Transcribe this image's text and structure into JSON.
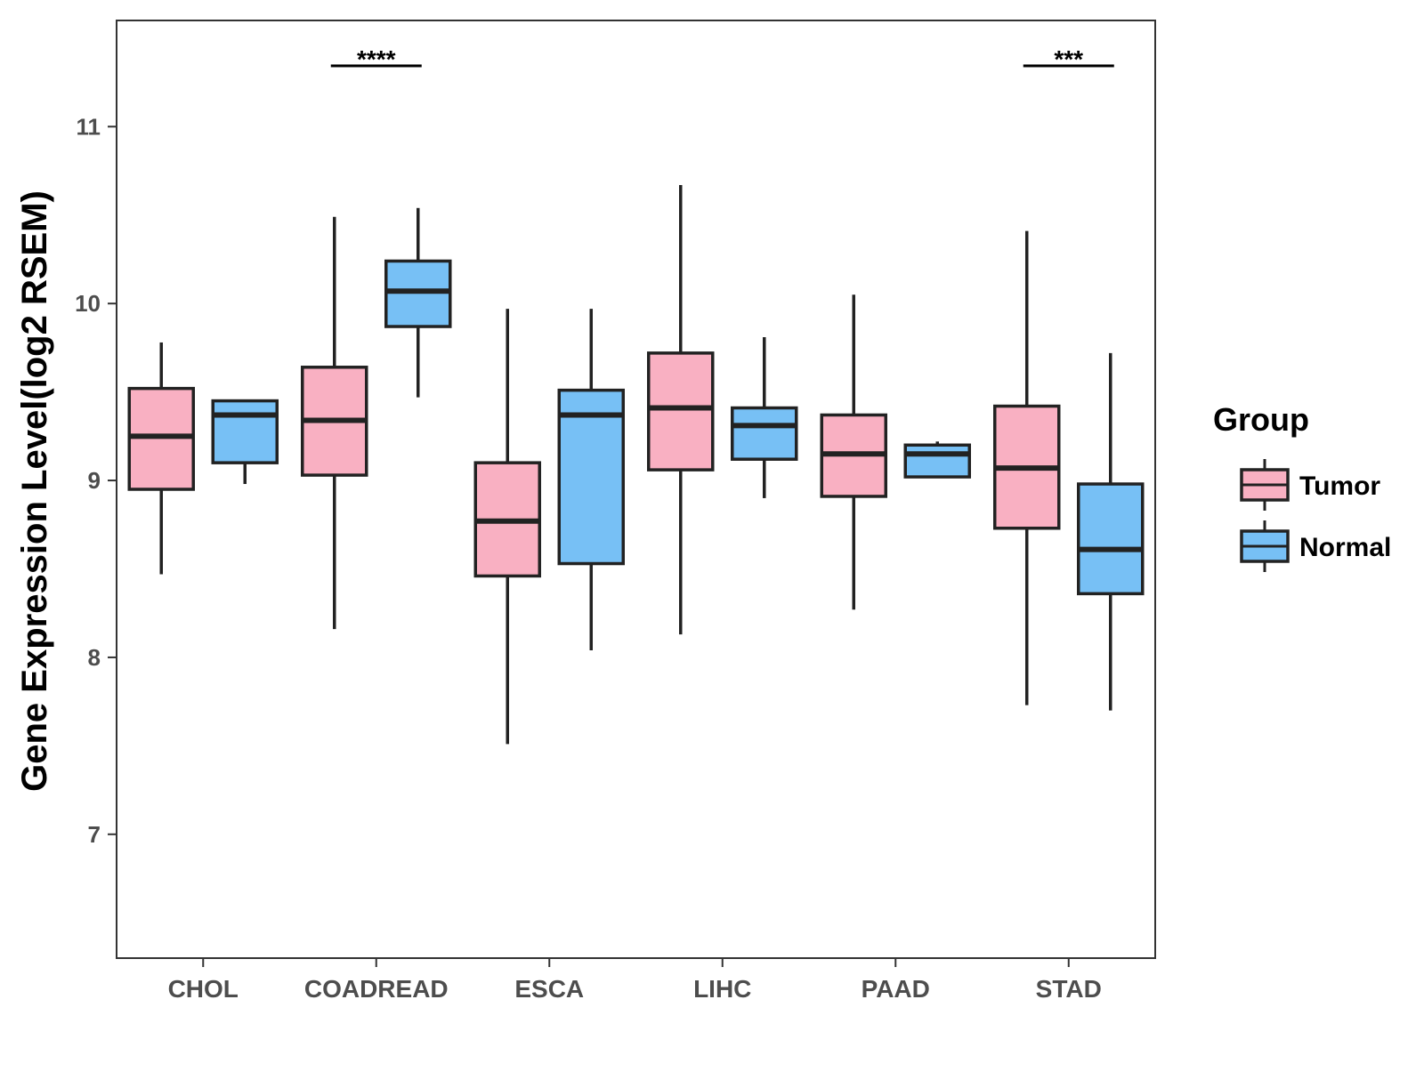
{
  "chart_data": {
    "type": "boxplot",
    "title": "",
    "xlabel": "",
    "ylabel": "Gene Expression Level(log2 RSEM)",
    "ylim": [
      6.3,
      11.6
    ],
    "yticks": [
      7,
      8,
      9,
      10,
      11
    ],
    "grid": false,
    "legend_position": "right",
    "categories": [
      "CHOL",
      "COADREAD",
      "ESCA",
      "LIHC",
      "PAAD",
      "STAD"
    ],
    "legend": {
      "title": "Group",
      "entries": [
        {
          "name": "Tumor",
          "color": "#F9B0C2"
        },
        {
          "name": "Normal",
          "color": "#77C0F5"
        }
      ]
    },
    "series": [
      {
        "name": "Tumor",
        "color": "#F9B0C2",
        "boxes": [
          {
            "category": "CHOL",
            "min": 8.47,
            "q1": 8.95,
            "median": 9.25,
            "q3": 9.52,
            "max": 9.78
          },
          {
            "category": "COADREAD",
            "min": 8.16,
            "q1": 9.03,
            "median": 9.34,
            "q3": 9.64,
            "max": 10.49
          },
          {
            "category": "ESCA",
            "min": 7.51,
            "q1": 8.46,
            "median": 8.77,
            "q3": 9.1,
            "max": 9.97
          },
          {
            "category": "LIHC",
            "min": 8.13,
            "q1": 9.06,
            "median": 9.41,
            "q3": 9.72,
            "max": 10.67
          },
          {
            "category": "PAAD",
            "min": 8.27,
            "q1": 8.91,
            "median": 9.15,
            "q3": 9.37,
            "max": 10.05
          },
          {
            "category": "STAD",
            "min": 7.73,
            "q1": 8.73,
            "median": 9.07,
            "q3": 9.42,
            "max": 10.41
          }
        ]
      },
      {
        "name": "Normal",
        "color": "#77C0F5",
        "boxes": [
          {
            "category": "CHOL",
            "min": 8.98,
            "q1": 9.1,
            "median": 9.37,
            "q3": 9.45,
            "max": 9.45
          },
          {
            "category": "COADREAD",
            "min": 9.47,
            "q1": 9.87,
            "median": 10.07,
            "q3": 10.24,
            "max": 10.54
          },
          {
            "category": "ESCA",
            "min": 8.04,
            "q1": 8.53,
            "median": 9.37,
            "q3": 9.51,
            "max": 9.97
          },
          {
            "category": "LIHC",
            "min": 8.9,
            "q1": 9.12,
            "median": 9.31,
            "q3": 9.41,
            "max": 9.81
          },
          {
            "category": "PAAD",
            "min": 9.02,
            "q1": 9.02,
            "median": 9.15,
            "q3": 9.2,
            "max": 9.22
          },
          {
            "category": "STAD",
            "min": 7.7,
            "q1": 8.36,
            "median": 8.61,
            "q3": 8.98,
            "max": 9.72
          }
        ]
      }
    ],
    "annotations": [
      {
        "category": "COADREAD",
        "text": "****"
      },
      {
        "category": "STAD",
        "text": "***"
      }
    ]
  }
}
